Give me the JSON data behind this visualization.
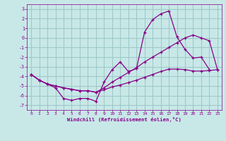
{
  "background_color": "#c8e8e8",
  "grid_color": "#a0c8c8",
  "line_color": "#880088",
  "xlabel": "Windchill (Refroidissement éolien,°C)",
  "xlim": [
    -0.5,
    23.5
  ],
  "ylim": [
    -7.5,
    3.5
  ],
  "xticks": [
    0,
    1,
    2,
    3,
    4,
    5,
    6,
    7,
    8,
    9,
    10,
    11,
    12,
    13,
    14,
    15,
    16,
    17,
    18,
    19,
    20,
    21,
    22,
    23
  ],
  "yticks": [
    -7,
    -6,
    -5,
    -4,
    -3,
    -2,
    -1,
    0,
    1,
    2,
    3
  ],
  "line1": {
    "x": [
      0,
      1,
      2,
      3,
      4,
      5,
      6,
      7,
      8,
      9,
      10,
      11,
      12,
      13,
      14,
      15,
      16,
      17,
      18,
      19,
      20,
      21,
      22
    ],
    "y": [
      -3.8,
      -4.4,
      -4.8,
      -5.2,
      -6.3,
      -6.5,
      -6.3,
      -6.3,
      -6.6,
      -4.6,
      -3.3,
      -2.5,
      -3.5,
      -3.2,
      0.6,
      1.9,
      2.5,
      2.8,
      0.1,
      -1.2,
      -2.1,
      -2.0,
      -3.3
    ]
  },
  "line2": {
    "x": [
      0,
      1,
      2,
      3,
      4,
      5,
      6,
      7,
      8,
      9,
      10,
      11,
      12,
      13,
      14,
      15,
      16,
      17,
      18,
      19,
      20,
      21,
      22,
      23
    ],
    "y": [
      -3.8,
      -4.4,
      -4.8,
      -5.0,
      -5.2,
      -5.35,
      -5.5,
      -5.5,
      -5.65,
      -5.4,
      -5.1,
      -4.9,
      -4.65,
      -4.4,
      -4.1,
      -3.8,
      -3.5,
      -3.25,
      -3.25,
      -3.3,
      -3.45,
      -3.45,
      -3.4,
      -3.3
    ]
  },
  "line3": {
    "x": [
      0,
      1,
      2,
      3,
      4,
      5,
      6,
      7,
      8,
      9,
      10,
      11,
      12,
      13,
      14,
      15,
      16,
      17,
      18,
      19,
      20,
      21,
      22,
      23
    ],
    "y": [
      -3.8,
      -4.4,
      -4.8,
      -5.0,
      -5.2,
      -5.35,
      -5.5,
      -5.5,
      -5.65,
      -5.2,
      -4.6,
      -4.1,
      -3.6,
      -3.1,
      -2.5,
      -2.0,
      -1.5,
      -1.0,
      -0.5,
      0.0,
      0.3,
      0.0,
      -0.3,
      -3.3
    ]
  }
}
